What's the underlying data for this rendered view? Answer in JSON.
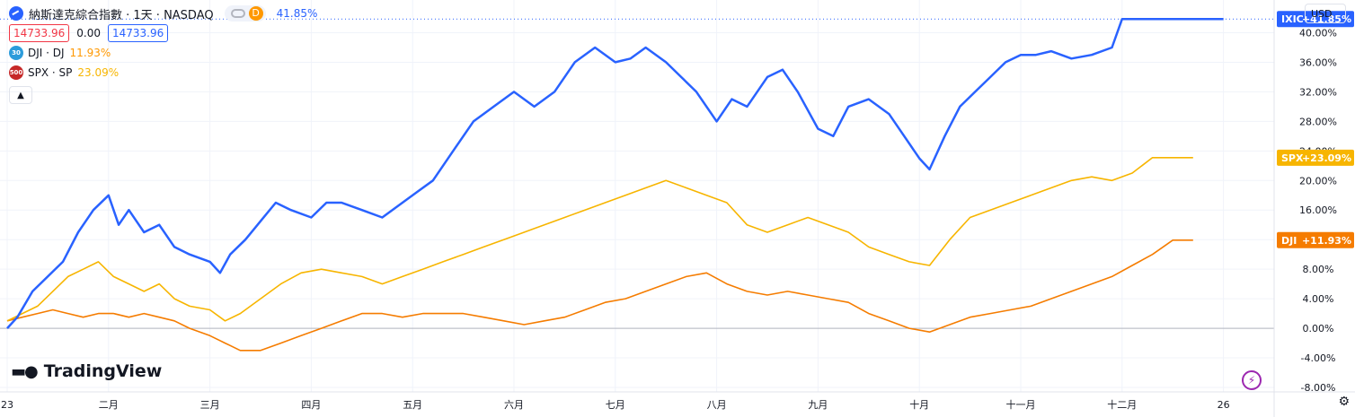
{
  "header": {
    "title": "納斯達克綜合指數 · 1天 · NASDAQ",
    "d_badge": "D",
    "change_pct": "41.85%",
    "ohlc_left": "14733.96",
    "ohlc_mid": "0.00",
    "ohlc_right": "14733.96",
    "currency": "USD",
    "collapse_icon": "chevron-up-icon"
  },
  "comparisons": [
    {
      "badge": "30",
      "label": "DJI · DJ",
      "value": "11.93%",
      "badge_color": "#2d9cdb",
      "value_color": "#ff9800"
    },
    {
      "badge": "500",
      "label": "SPX · SP",
      "value": "23.09%",
      "badge_color": "#c62828",
      "value_color": "#f7b500"
    }
  ],
  "branding": {
    "logo_text": "TradingView"
  },
  "chart_data": {
    "type": "line",
    "ylim": [
      -8,
      42
    ],
    "y_ticks": [
      -8,
      -4,
      0,
      4,
      8,
      12,
      16,
      20,
      24,
      28,
      32,
      36,
      40
    ],
    "y_tick_labels": [
      "-8.00%",
      "-4.00%",
      "0.00%",
      "4.00%",
      "8.00%",
      "12.00%",
      "16.00%",
      "20.00%",
      "24.00%",
      "28.00%",
      "32.00%",
      "36.00%",
      "40.00%"
    ],
    "x_tick_labels": [
      "23",
      "二月",
      "三月",
      "四月",
      "五月",
      "六月",
      "七月",
      "八月",
      "九月",
      "十月",
      "十一月",
      "十二月",
      "26"
    ],
    "x_tick_pos": [
      0,
      1,
      2,
      3,
      4,
      5,
      6,
      7,
      8,
      9,
      10,
      11,
      12
    ],
    "xlim": [
      0,
      12.5
    ],
    "series": [
      {
        "name": "IXIC",
        "color": "#2962ff",
        "badge_value": "+41.85%",
        "end_value": 41.85,
        "x": [
          0,
          0.1,
          0.25,
          0.4,
          0.55,
          0.7,
          0.85,
          1.0,
          1.1,
          1.2,
          1.35,
          1.5,
          1.65,
          1.8,
          2.0,
          2.1,
          2.2,
          2.35,
          2.5,
          2.65,
          2.8,
          3.0,
          3.15,
          3.3,
          3.5,
          3.7,
          3.9,
          4.05,
          4.2,
          4.4,
          4.6,
          4.8,
          5.0,
          5.2,
          5.4,
          5.6,
          5.8,
          6.0,
          6.15,
          6.3,
          6.5,
          6.65,
          6.8,
          7.0,
          7.15,
          7.3,
          7.5,
          7.65,
          7.8,
          8.0,
          8.15,
          8.3,
          8.5,
          8.7,
          8.85,
          9.0,
          9.1,
          9.25,
          9.4,
          9.55,
          9.7,
          9.85,
          10.0,
          10.15,
          10.3,
          10.5,
          10.7,
          10.9,
          11.0,
          11.2,
          11.4,
          11.6,
          11.8,
          12.0
        ],
        "y": [
          0,
          1.5,
          5,
          7,
          9,
          13,
          16,
          18,
          14,
          16,
          13,
          14,
          11,
          10,
          9,
          7.5,
          10,
          12,
          14.5,
          17,
          16,
          15,
          17,
          17,
          16,
          15,
          17,
          18.5,
          20,
          24,
          28,
          30,
          32,
          30,
          32,
          36,
          38,
          36,
          36.5,
          38,
          36,
          34,
          32,
          28,
          31,
          30,
          34,
          35,
          32,
          27,
          26,
          30,
          31,
          29,
          26,
          23,
          21.5,
          26,
          30,
          32,
          34,
          36,
          37,
          37,
          37.5,
          36.5,
          37,
          38,
          41.85,
          41.85,
          41.85,
          41.85,
          41.85,
          41.85
        ]
      },
      {
        "name": "SPX",
        "color": "#f7b500",
        "badge_value": "+23.09%",
        "end_value": 23.09,
        "x": [
          0,
          0.15,
          0.3,
          0.45,
          0.6,
          0.75,
          0.9,
          1.05,
          1.2,
          1.35,
          1.5,
          1.65,
          1.8,
          2.0,
          2.15,
          2.3,
          2.5,
          2.7,
          2.9,
          3.1,
          3.3,
          3.5,
          3.7,
          3.9,
          4.1,
          4.3,
          4.5,
          4.7,
          4.9,
          5.1,
          5.3,
          5.5,
          5.7,
          5.9,
          6.1,
          6.3,
          6.5,
          6.7,
          6.9,
          7.1,
          7.3,
          7.5,
          7.7,
          7.9,
          8.1,
          8.3,
          8.5,
          8.7,
          8.9,
          9.1,
          9.3,
          9.5,
          9.7,
          9.9,
          10.1,
          10.3,
          10.5,
          10.7,
          10.9,
          11.1,
          11.3,
          11.5,
          11.7
        ],
        "y": [
          1,
          2,
          3,
          5,
          7,
          8,
          9,
          7,
          6,
          5,
          6,
          4,
          3,
          2.5,
          1,
          2,
          4,
          6,
          7.5,
          8,
          7.5,
          7,
          6,
          7,
          8,
          9,
          10,
          11,
          12,
          13,
          14,
          15,
          16,
          17,
          18,
          19,
          20,
          19,
          18,
          17,
          14,
          13,
          14,
          15,
          14,
          13,
          11,
          10,
          9,
          8.5,
          12,
          15,
          16,
          17,
          18,
          19,
          20,
          20.5,
          20,
          21,
          23.09,
          23.09,
          23.09
        ]
      },
      {
        "name": "DJI",
        "color": "#f57c00",
        "badge_value": "+11.93%",
        "end_value": 11.93,
        "x": [
          0,
          0.15,
          0.3,
          0.45,
          0.6,
          0.75,
          0.9,
          1.05,
          1.2,
          1.35,
          1.5,
          1.65,
          1.8,
          2.0,
          2.15,
          2.3,
          2.5,
          2.7,
          2.9,
          3.1,
          3.3,
          3.5,
          3.7,
          3.9,
          4.1,
          4.3,
          4.5,
          4.7,
          4.9,
          5.1,
          5.3,
          5.5,
          5.7,
          5.9,
          6.1,
          6.3,
          6.5,
          6.7,
          6.9,
          7.1,
          7.3,
          7.5,
          7.7,
          7.9,
          8.1,
          8.3,
          8.5,
          8.7,
          8.9,
          9.1,
          9.3,
          9.5,
          9.7,
          9.9,
          10.1,
          10.3,
          10.5,
          10.7,
          10.9,
          11.1,
          11.3,
          11.5,
          11.7
        ],
        "y": [
          1,
          1.5,
          2,
          2.5,
          2,
          1.5,
          2,
          2,
          1.5,
          2,
          1.5,
          1,
          0,
          -1,
          -2,
          -3,
          -3,
          -2,
          -1,
          0,
          1,
          2,
          2,
          1.5,
          2,
          2,
          2,
          1.5,
          1,
          0.5,
          1,
          1.5,
          2.5,
          3.5,
          4,
          5,
          6,
          7,
          7.5,
          6,
          5,
          4.5,
          5,
          4.5,
          4,
          3.5,
          2,
          1,
          0,
          -0.5,
          0.5,
          1.5,
          2,
          2.5,
          3,
          4,
          5,
          6,
          7,
          8.5,
          10,
          11.93,
          11.93
        ]
      }
    ]
  }
}
